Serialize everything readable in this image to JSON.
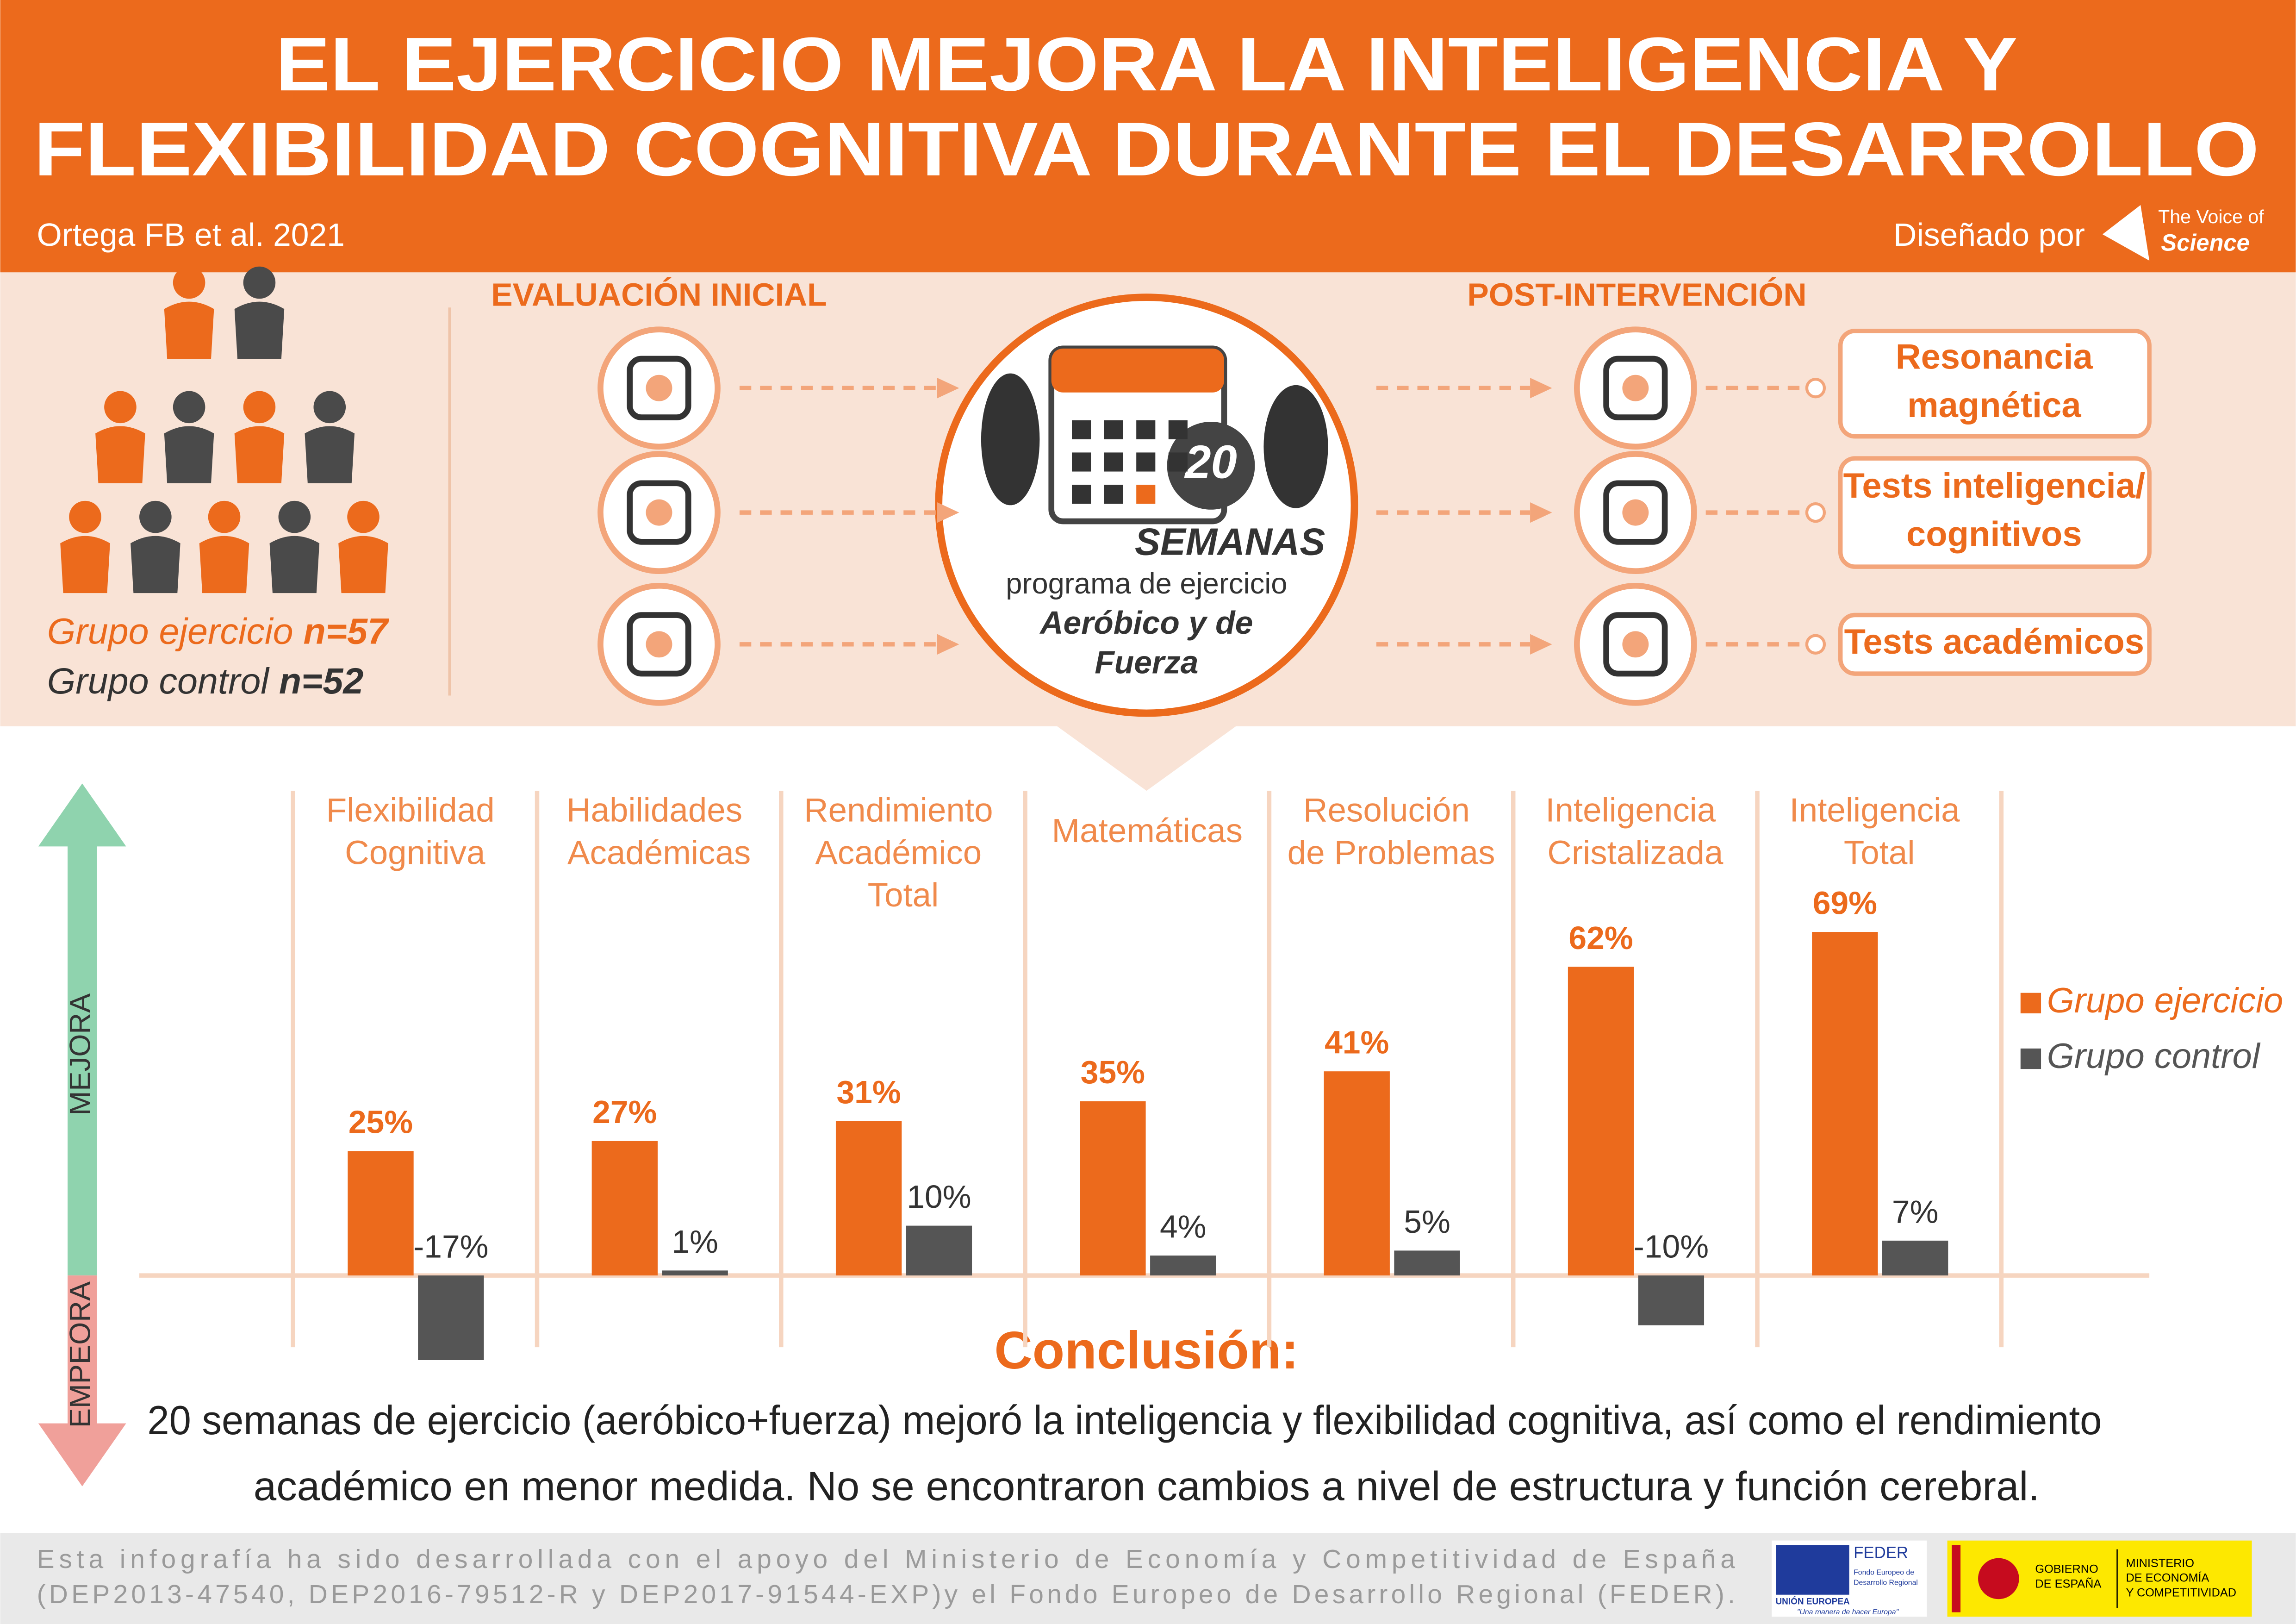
{
  "header": {
    "title": [
      "EL EJERCICIO MEJORA LA INTELIGENCIA Y",
      "FLEXIBILIDAD COGNITIVA DURANTE EL DESARROLLO"
    ],
    "citation": "Ortega FB et al. 2021",
    "designed_by": "Diseñado por",
    "brand": [
      "The Voice of",
      "Science"
    ]
  },
  "groups": {
    "exercise": {
      "label": "Grupo ejercicio",
      "n": "n=57"
    },
    "control": {
      "label": "Grupo control",
      "n": "n=52"
    }
  },
  "design": {
    "initial": "EVALUACIÓN INICIAL",
    "post": "POST-INTERVENCIÓN",
    "weeks": "20",
    "weeks_label": "SEMANAS",
    "program": "programa de ejercicio",
    "program_type": [
      "Aeróbico y de",
      "Fuerza"
    ],
    "outcomes": [
      [
        "Resonancia",
        "magnética"
      ],
      [
        "Tests inteligencia/",
        "cognitivos"
      ],
      [
        "Tests académicos"
      ]
    ]
  },
  "chart_data": {
    "type": "bar",
    "side_labels": {
      "up": "MEJORA",
      "down": "EMPEORA"
    },
    "categories": [
      "Flexibilidad\nCognitiva",
      "Habilidades\nAcadémicas",
      "Rendimiento\nAcadémico\nTotal",
      "Matemáticas",
      "Resolución\nde Problemas",
      "Inteligencia\nCristalizada",
      "Inteligencia\nTotal"
    ],
    "series": [
      {
        "name": "Grupo ejercicio",
        "color": "#ec6a1c",
        "values": [
          25,
          27,
          31,
          35,
          41,
          62,
          69
        ],
        "value_labels": [
          "25%",
          "27%",
          "31%",
          "35%",
          "41%",
          "62%",
          "69%"
        ]
      },
      {
        "name": "Grupo control",
        "color": "#555555",
        "values": [
          -17,
          1,
          10,
          4,
          5,
          -10,
          7
        ],
        "value_labels": [
          "-17%",
          "1%",
          "10%",
          "4%",
          "5%",
          "-10%",
          "7%"
        ]
      }
    ]
  },
  "conclusion": {
    "heading": "Conclusión:",
    "text": [
      "20 semanas de ejercicio (aeróbico+fuerza) mejoró la inteligencia y flexibilidad cognitiva, así como el rendimiento",
      "académico en menor medida. No se encontraron cambios a nivel de estructura y función cerebral."
    ]
  },
  "footer": {
    "text": [
      "Esta infografía ha sido desarrollada con el apoyo del Ministerio de Economía y Competitividad de España",
      "(DEP2013-47540, DEP2016-79512-R y DEP2017-91544-EXP)y el Fondo Europeo de Desarrollo Regional (FEDER)."
    ],
    "feder": "FEDER",
    "feder_sub": [
      "Fondo Europeo de",
      "Desarrollo Regional"
    ],
    "eu": "UNIÓN EUROPEA",
    "eu_motto": "\"Una manera de hacer Europa\"",
    "gov": [
      "GOBIERNO",
      "DE ESPAÑA"
    ],
    "ministry": [
      "MINISTERIO",
      "DE ECONOMÍA",
      "Y COMPETITIVIDAD"
    ]
  }
}
